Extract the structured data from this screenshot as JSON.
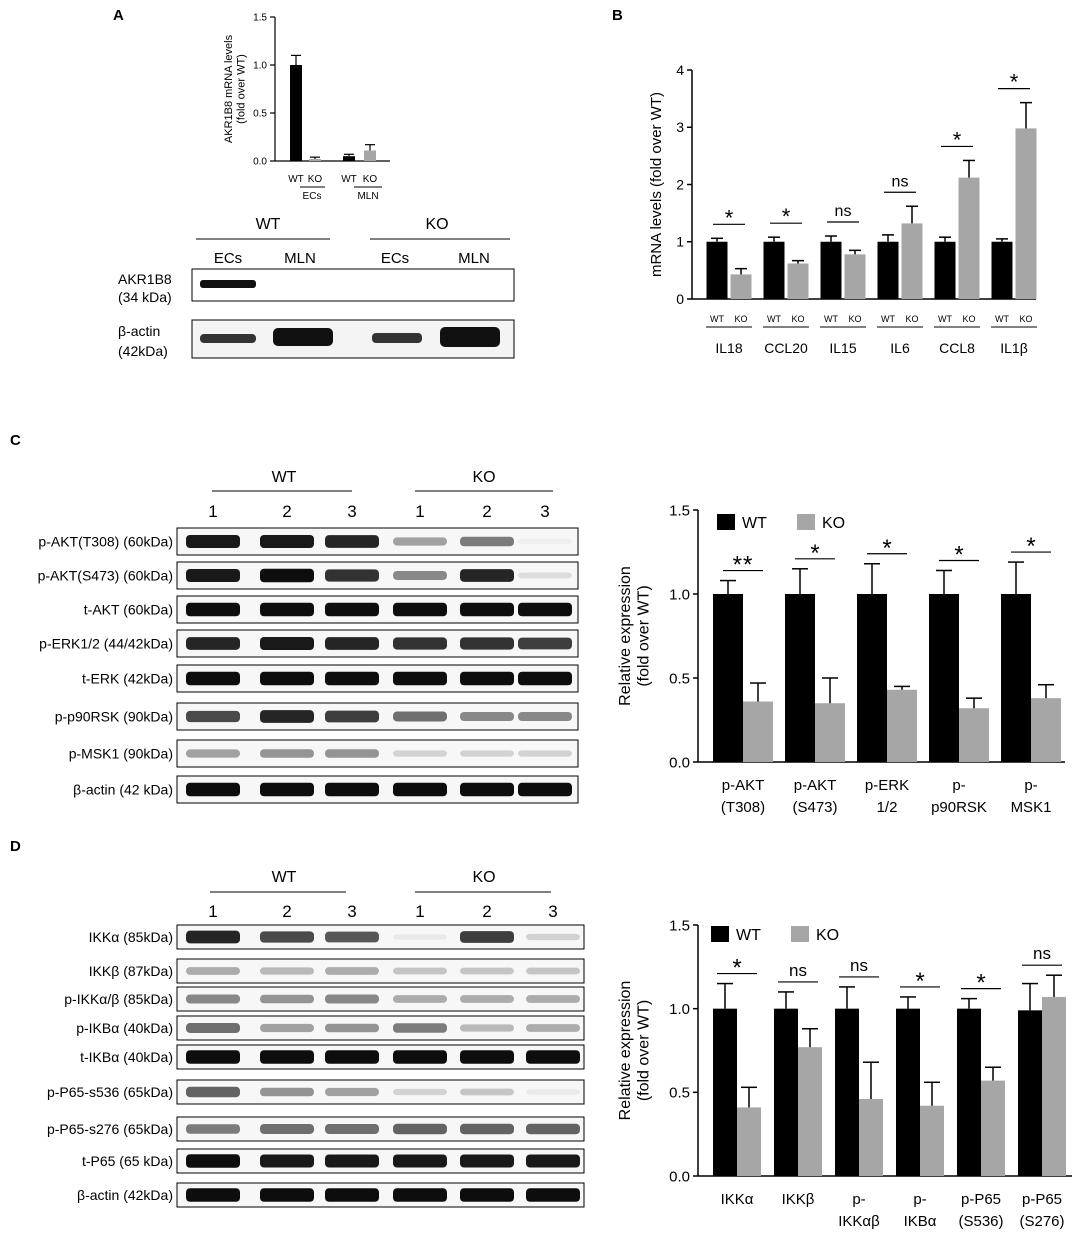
{
  "colors": {
    "wt": "#000000",
    "ko": "#a6a6a6",
    "axis": "#000000"
  },
  "panels": {
    "A": "A",
    "B": "B",
    "C": "C",
    "D": "D"
  },
  "blot_a": {
    "wt": "WT",
    "ko": "KO",
    "lanes": [
      "ECs",
      "MLN",
      "ECs",
      "MLN"
    ],
    "rows": [
      {
        "label1": "AKR1B8",
        "label2": "(34 kDa)"
      },
      {
        "label1": "β-actin",
        "label2": "(42kDa)"
      }
    ]
  },
  "blot_c": {
    "wt": "WT",
    "ko": "KO",
    "lanes": [
      "1",
      "2",
      "3",
      "1",
      "2",
      "3"
    ],
    "rows": [
      "p-AKT(T308) (60kDa)",
      "p-AKT(S473) (60kDa)",
      "t-AKT (60kDa)",
      "p-ERK1/2 (44/42kDa)",
      "t-ERK (42kDa)",
      "p-p90RSK (90kDa)",
      "p-MSK1 (90kDa)",
      "β-actin (42 kDa)"
    ]
  },
  "blot_d": {
    "wt": "WT",
    "ko": "KO",
    "lanes": [
      "1",
      "2",
      "3",
      "1",
      "2",
      "3"
    ],
    "rows": [
      "IKKα (85kDa)",
      "IKKβ (87kDa)",
      "p-IKKα/β (85kDa)",
      "p-IKBα (40kDa)",
      "t-IKBα (40kDa)",
      "p-P65-s536 (65kDa)",
      "p-P65-s276 (65kDa)",
      "t-P65 (65 kDa)",
      "β-actin (42kDa)"
    ]
  },
  "chart_data": [
    {
      "id": "A",
      "type": "bar",
      "ylabel": "AKR1B8 mRNA levels (fold over WT)",
      "ylim": [
        0,
        1.5
      ],
      "yticks": [
        "0.0",
        "0.5",
        "1.0",
        "1.5"
      ],
      "bars": [
        {
          "label": "WT",
          "value": 1.0,
          "err": 0.1,
          "series": "WT"
        },
        {
          "label": "KO",
          "value": 0.02,
          "err": 0.02,
          "series": "KO"
        },
        {
          "label": "WT",
          "value": 0.05,
          "err": 0.02,
          "series": "WT"
        },
        {
          "label": "KO",
          "value": 0.11,
          "err": 0.06,
          "series": "KO"
        }
      ],
      "groups": [
        "ECs",
        "MLN"
      ]
    },
    {
      "id": "B",
      "type": "bar",
      "ylabel": "mRNA levels (fold over WT)",
      "ylim": [
        0,
        4
      ],
      "yticks": [
        "0",
        "1",
        "2",
        "3",
        "4"
      ],
      "categories": [
        "IL18",
        "CCL20",
        "IL15",
        "IL6",
        "CCL8",
        "IL1β"
      ],
      "bar_labels": [
        "WT",
        "KO"
      ],
      "series": [
        {
          "name": "WT",
          "values": [
            1.0,
            1.0,
            1.0,
            1.0,
            1.0,
            1.0
          ],
          "errors": [
            0.06,
            0.08,
            0.1,
            0.12,
            0.08,
            0.05
          ]
        },
        {
          "name": "KO",
          "values": [
            0.43,
            0.62,
            0.78,
            1.32,
            2.12,
            2.98
          ],
          "errors": [
            0.1,
            0.05,
            0.07,
            0.3,
            0.3,
            0.45
          ]
        }
      ],
      "significance": [
        "*",
        "*",
        "ns",
        "ns",
        "*",
        "*"
      ]
    },
    {
      "id": "C",
      "type": "bar",
      "ylabel": "Relative expression (fold over WT)",
      "ylim": [
        0,
        1.5
      ],
      "yticks": [
        "0.0",
        "0.5",
        "1.0",
        "1.5"
      ],
      "categories": [
        [
          "p-AKT",
          "(T308)"
        ],
        [
          "p-AKT",
          "(S473)"
        ],
        [
          "p-ERK",
          "1/2"
        ],
        [
          "p-",
          "p90RSK"
        ],
        [
          "p-",
          "MSK1"
        ]
      ],
      "series": [
        {
          "name": "WT",
          "values": [
            1.0,
            1.0,
            1.0,
            1.0,
            1.0
          ],
          "errors": [
            0.08,
            0.15,
            0.18,
            0.14,
            0.19
          ]
        },
        {
          "name": "KO",
          "values": [
            0.36,
            0.35,
            0.43,
            0.32,
            0.38
          ],
          "errors": [
            0.11,
            0.15,
            0.02,
            0.06,
            0.08
          ]
        }
      ],
      "significance": [
        "**",
        "*",
        "*",
        "*",
        "*"
      ],
      "legend": "top-left"
    },
    {
      "id": "D",
      "type": "bar",
      "ylabel": "Relative expression (fold over WT)",
      "ylim": [
        0,
        1.5
      ],
      "yticks": [
        "0.0",
        "0.5",
        "1.0",
        "1.5"
      ],
      "categories": [
        [
          "IKKα"
        ],
        [
          "IKKβ"
        ],
        [
          "p-",
          "IKKαβ"
        ],
        [
          "p-",
          "IKBα"
        ],
        [
          "p-P65",
          "(S536)"
        ],
        [
          "p-P65",
          "(S276)"
        ]
      ],
      "series": [
        {
          "name": "WT",
          "values": [
            1.0,
            1.0,
            1.0,
            1.0,
            1.0,
            0.99
          ],
          "errors": [
            0.15,
            0.1,
            0.13,
            0.07,
            0.06,
            0.16
          ]
        },
        {
          "name": "KO",
          "values": [
            0.41,
            0.77,
            0.46,
            0.42,
            0.57,
            1.07
          ],
          "errors": [
            0.12,
            0.11,
            0.22,
            0.14,
            0.08,
            0.13
          ]
        }
      ],
      "significance": [
        "*",
        "ns",
        "ns",
        "*",
        "*",
        "ns"
      ],
      "legend": "top-left"
    }
  ]
}
